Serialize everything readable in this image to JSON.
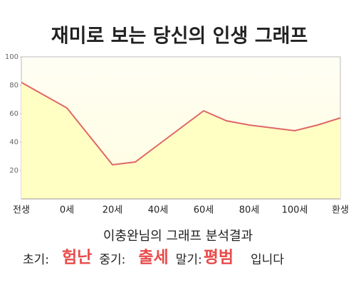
{
  "chart_data": {
    "type": "area",
    "title": "재미로 보는 당신의 인생 그래프",
    "categories": [
      "전생",
      null,
      "0세",
      null,
      "20세",
      null,
      "40세",
      null,
      "60세",
      null,
      "80세",
      null,
      "100세",
      null,
      "환생"
    ],
    "values": [
      82,
      73,
      64,
      44,
      24,
      26,
      38,
      50,
      62,
      55,
      52,
      50,
      48,
      52,
      57
    ],
    "color": "#e06666",
    "fill": "#ffffc4",
    "ylim": [
      0,
      100
    ],
    "yticks": [
      20,
      40,
      60,
      80,
      100
    ]
  },
  "analysis": {
    "title": "이충완님의 그래프 분석결과",
    "items": [
      {
        "label": "초기:",
        "value": "험난"
      },
      {
        "label": "중기:",
        "value": "출세"
      },
      {
        "label": "말기:",
        "value": "평범"
      }
    ],
    "suffix": "입니다"
  }
}
